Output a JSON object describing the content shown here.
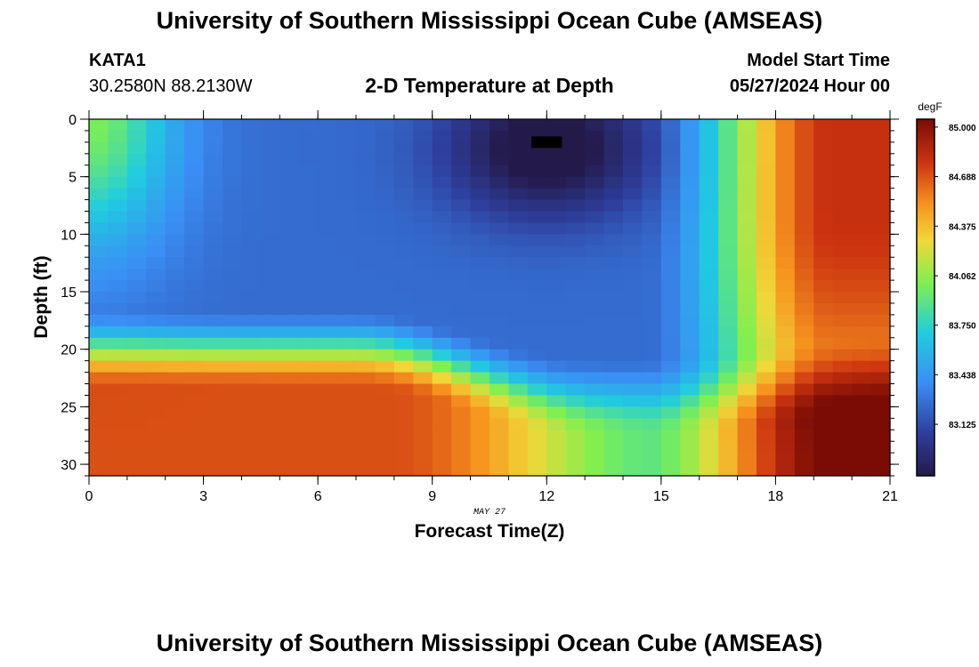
{
  "header": {
    "title": "University of Southern Mississippi Ocean Cube (AMSEAS)",
    "station": "KATA1",
    "coordinates": "30.2580N  88.2130W",
    "plot_title": "2-D Temperature at Depth",
    "model_start_label": "Model Start Time",
    "model_start_value": "05/27/2024 Hour 00"
  },
  "footer": {
    "title": "University of Southern Mississippi Ocean Cube (AMSEAS)"
  },
  "chart_data": {
    "type": "heatmap",
    "title": "2-D Temperature at Depth",
    "xlabel": "Forecast Time(Z)",
    "ylabel": "Depth (ft)",
    "date_label": "MAY 27",
    "xlim": [
      0,
      21
    ],
    "ylim": [
      0,
      31
    ],
    "y_inverted": true,
    "x_ticks": [
      0,
      3,
      6,
      9,
      12,
      15,
      18,
      21
    ],
    "y_ticks": [
      0,
      5,
      10,
      15,
      20,
      25,
      30
    ],
    "colorbar": {
      "units": "degF",
      "min": 82.8,
      "max": 85.05,
      "ticks": [
        "85.000",
        "84.688",
        "84.375",
        "84.062",
        "83.750",
        "83.438",
        "83.125"
      ]
    },
    "grid": {
      "x_cells": 42,
      "y_cells": 31,
      "description": "temperature field sampled on 0.5 h x 1 ft cells"
    },
    "field_features": {
      "surface_cold_core_degF": 82.8,
      "cold_core_time_h": 12,
      "cold_core_depth_ft": 2.5,
      "missing_cell_time_h": 12,
      "missing_cell_depth_ft": 2,
      "bottom_warm_layer_degF": 84.8,
      "late_period_warm_degF": 84.9
    }
  }
}
